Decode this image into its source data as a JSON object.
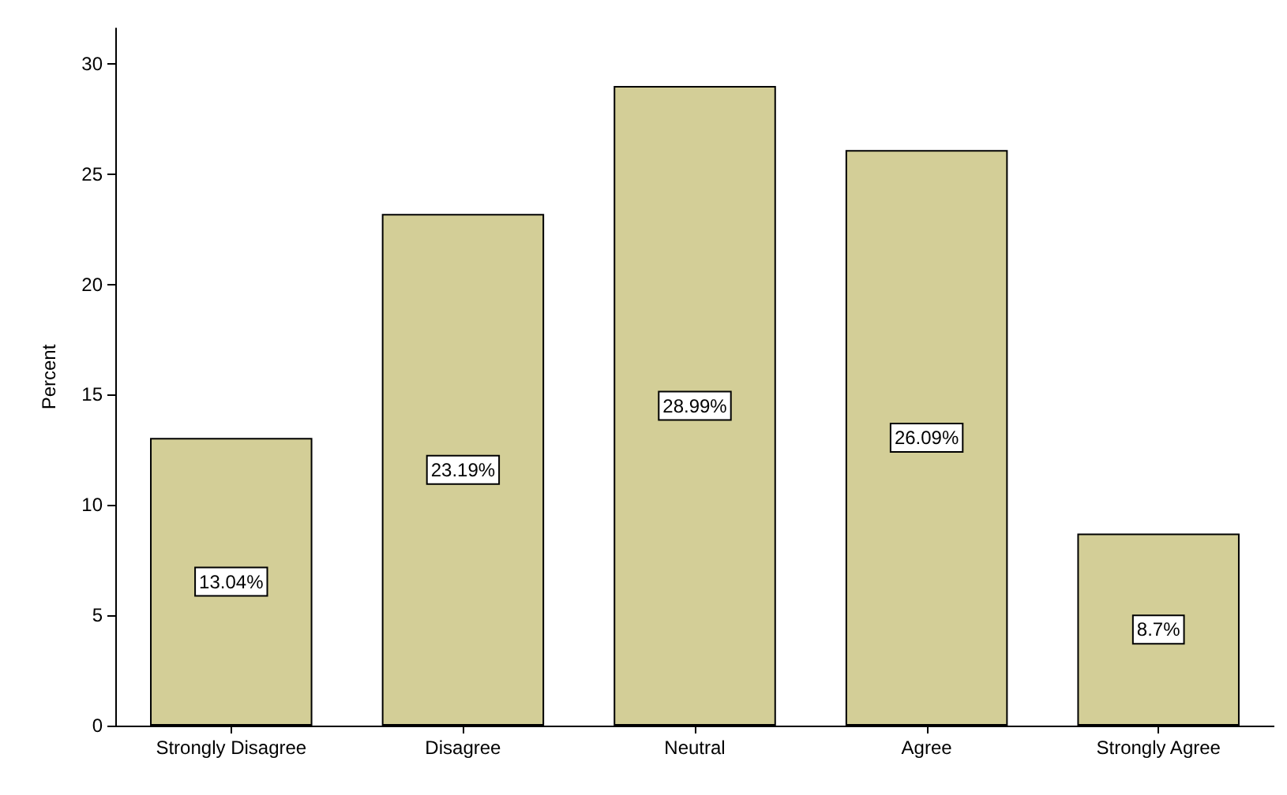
{
  "chart_data": {
    "type": "bar",
    "ylabel": "Percent",
    "categories": [
      "Strongly Disagree",
      "Disagree",
      "Neutral",
      "Agree",
      "Strongly Agree"
    ],
    "values": [
      13.04,
      23.19,
      28.99,
      26.09,
      8.7
    ],
    "value_labels": [
      "13.04%",
      "23.19%",
      "28.99%",
      "26.09%",
      "8.7%"
    ],
    "color": "#d3ce97",
    "ylim": [
      0,
      31.6
    ],
    "yticks": [
      0,
      5,
      10,
      15,
      20,
      25,
      30
    ],
    "grid": false
  }
}
